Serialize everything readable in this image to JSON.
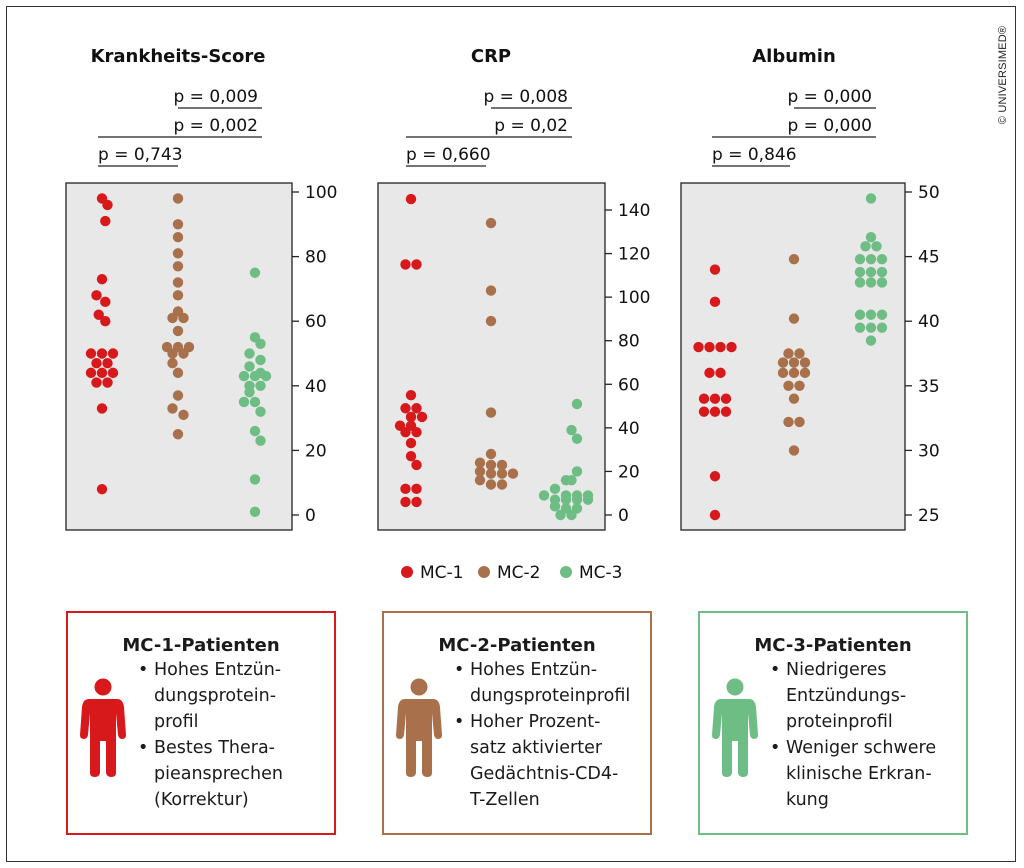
{
  "copyright": "© UNIVERSIMED®",
  "chart_data": [
    {
      "type": "scatter",
      "title": "Krankheits-Score",
      "ylim": [
        0,
        100
      ],
      "yticks": [
        "0",
        "20",
        "40",
        "60",
        "80",
        "100"
      ],
      "yticks_values": [
        0,
        20,
        40,
        60,
        80,
        100
      ],
      "pvalues": [
        "p = 0,009",
        "p = 0,002",
        "p = 0,743"
      ],
      "groups": [
        {
          "name": "MC-1",
          "points": [
            [
              0,
              98
            ],
            [
              0.5,
              96
            ],
            [
              0.3,
              91
            ],
            [
              0,
              73
            ],
            [
              -0.5,
              68
            ],
            [
              0.3,
              66
            ],
            [
              -0.3,
              62
            ],
            [
              0.3,
              60
            ],
            [
              -1,
              50
            ],
            [
              0,
              50
            ],
            [
              1,
              50
            ],
            [
              -0.5,
              47
            ],
            [
              0.5,
              47
            ],
            [
              -1,
              44
            ],
            [
              0,
              44
            ],
            [
              1,
              44
            ],
            [
              -0.5,
              41
            ],
            [
              0.5,
              41
            ],
            [
              0,
              33
            ],
            [
              0,
              8
            ]
          ]
        },
        {
          "name": "MC-2",
          "points": [
            [
              0,
              98
            ],
            [
              0,
              90
            ],
            [
              0,
              86
            ],
            [
              0,
              81
            ],
            [
              0,
              77
            ],
            [
              0,
              72
            ],
            [
              0,
              68
            ],
            [
              0,
              63
            ],
            [
              -0.5,
              61
            ],
            [
              0.5,
              61
            ],
            [
              0,
              57
            ],
            [
              -1,
              52
            ],
            [
              0,
              52
            ],
            [
              1,
              52
            ],
            [
              -0.5,
              50
            ],
            [
              0.5,
              50
            ],
            [
              -0.5,
              47
            ],
            [
              0,
              44
            ],
            [
              0,
              37
            ],
            [
              -0.5,
              33
            ],
            [
              0.5,
              31
            ],
            [
              0,
              25
            ]
          ]
        },
        {
          "name": "MC-3",
          "points": [
            [
              0,
              75
            ],
            [
              0,
              55
            ],
            [
              0.5,
              53
            ],
            [
              -0.5,
              50
            ],
            [
              0.5,
              48
            ],
            [
              -0.5,
              46
            ],
            [
              0.5,
              44
            ],
            [
              -1,
              43
            ],
            [
              0,
              43
            ],
            [
              1,
              43
            ],
            [
              -0.5,
              40
            ],
            [
              0.5,
              40
            ],
            [
              -0.5,
              38
            ],
            [
              0,
              35
            ],
            [
              -1,
              35
            ],
            [
              0.5,
              32
            ],
            [
              0,
              26
            ],
            [
              0.5,
              23
            ],
            [
              0,
              11
            ],
            [
              0,
              1
            ]
          ]
        }
      ]
    },
    {
      "type": "scatter",
      "title": "CRP",
      "ylim": [
        0,
        150
      ],
      "yticks": [
        "0",
        "20",
        "40",
        "60",
        "80",
        "100",
        "120",
        "140"
      ],
      "yticks_values": [
        0,
        20,
        40,
        60,
        80,
        100,
        120,
        140
      ],
      "pvalues": [
        "p = 0,008",
        "p = 0,02",
        "p = 0,660"
      ],
      "groups": [
        {
          "name": "MC-1",
          "points": [
            [
              0,
              145
            ],
            [
              -0.5,
              115
            ],
            [
              0.5,
              115
            ],
            [
              0,
              55
            ],
            [
              -0.5,
              49
            ],
            [
              0.5,
              49
            ],
            [
              0,
              45
            ],
            [
              1,
              45
            ],
            [
              -1,
              41
            ],
            [
              0,
              41
            ],
            [
              -0.5,
              38
            ],
            [
              0.5,
              38
            ],
            [
              0,
              33
            ],
            [
              0,
              27
            ],
            [
              0.5,
              23
            ],
            [
              -0.5,
              12
            ],
            [
              0.5,
              12
            ],
            [
              -0.5,
              6
            ],
            [
              0.5,
              6
            ]
          ]
        },
        {
          "name": "MC-2",
          "points": [
            [
              0,
              134
            ],
            [
              0,
              103
            ],
            [
              0,
              89
            ],
            [
              0,
              47
            ],
            [
              0,
              28
            ],
            [
              -1,
              24
            ],
            [
              0,
              23
            ],
            [
              1,
              23
            ],
            [
              -1,
              20
            ],
            [
              0,
              19
            ],
            [
              1,
              19
            ],
            [
              2,
              19
            ],
            [
              -1,
              16
            ],
            [
              0,
              14
            ],
            [
              1,
              14
            ]
          ]
        },
        {
          "name": "MC-3",
          "points": [
            [
              1,
              51
            ],
            [
              0.5,
              39
            ],
            [
              1,
              35
            ],
            [
              1,
              20
            ],
            [
              0,
              16
            ],
            [
              0.5,
              16
            ],
            [
              -1,
              12
            ],
            [
              -2,
              9
            ],
            [
              0,
              9
            ],
            [
              1,
              9
            ],
            [
              2,
              9
            ],
            [
              -1,
              7
            ],
            [
              0,
              7
            ],
            [
              1,
              7
            ],
            [
              2,
              7
            ],
            [
              -1,
              4
            ],
            [
              0,
              3
            ],
            [
              1,
              3
            ],
            [
              -0.5,
              0
            ],
            [
              0.5,
              0
            ]
          ]
        }
      ]
    },
    {
      "type": "scatter",
      "title": "Albumin",
      "ylim": [
        25,
        50
      ],
      "yticks": [
        "25",
        "30",
        "35",
        "40",
        "45",
        "50"
      ],
      "yticks_values": [
        25,
        30,
        35,
        40,
        45,
        50
      ],
      "pvalues": [
        "p = 0,000",
        "p = 0,000",
        "p = 0,846"
      ],
      "groups": [
        {
          "name": "MC-1",
          "points": [
            [
              0,
              44
            ],
            [
              0,
              41.5
            ],
            [
              -1.5,
              38
            ],
            [
              -0.5,
              38
            ],
            [
              0.5,
              38
            ],
            [
              1.5,
              38
            ],
            [
              -0.5,
              36
            ],
            [
              0.5,
              36
            ],
            [
              -1,
              34
            ],
            [
              0,
              34
            ],
            [
              1,
              34
            ],
            [
              -1,
              33
            ],
            [
              0,
              33
            ],
            [
              1,
              33
            ],
            [
              0,
              28
            ],
            [
              0,
              25
            ]
          ]
        },
        {
          "name": "MC-2",
          "points": [
            [
              0,
              44.8
            ],
            [
              0,
              40.2
            ],
            [
              -0.5,
              37.5
            ],
            [
              0.5,
              37.5
            ],
            [
              -1,
              36.8
            ],
            [
              0,
              36.8
            ],
            [
              1,
              36.8
            ],
            [
              -1,
              36
            ],
            [
              0,
              36
            ],
            [
              1,
              36
            ],
            [
              -0.5,
              35
            ],
            [
              0.5,
              35
            ],
            [
              0,
              34
            ],
            [
              -0.5,
              32.2
            ],
            [
              0.5,
              32.2
            ],
            [
              0,
              30
            ]
          ]
        },
        {
          "name": "MC-3",
          "points": [
            [
              0,
              49.5
            ],
            [
              0,
              46.5
            ],
            [
              -0.5,
              45.8
            ],
            [
              0.5,
              45.8
            ],
            [
              -1,
              44.8
            ],
            [
              0,
              44.8
            ],
            [
              1,
              44.8
            ],
            [
              -1,
              43.8
            ],
            [
              0,
              43.8
            ],
            [
              1,
              43.8
            ],
            [
              -1,
              43
            ],
            [
              0,
              43
            ],
            [
              1,
              43
            ],
            [
              -1,
              40.5
            ],
            [
              0,
              40.5
            ],
            [
              1,
              40.5
            ],
            [
              -1,
              39.5
            ],
            [
              0,
              39.5
            ],
            [
              1,
              39.5
            ],
            [
              0,
              38.5
            ]
          ]
        }
      ]
    }
  ],
  "legend": [
    {
      "label": "MC-1",
      "color": "#d7191c"
    },
    {
      "label": "MC-2",
      "color": "#a8704b"
    },
    {
      "label": "MC-3",
      "color": "#6dbd84"
    }
  ],
  "cards": [
    {
      "title": "MC-1-Patienten",
      "color": "#d7191c",
      "bullets": [
        [
          "Hohes Entzün-",
          "dungsprotein-",
          "profil"
        ],
        [
          "Bestes Thera-",
          "pieansprechen",
          "(Korrektur)"
        ]
      ]
    },
    {
      "title": "MC-2-Patienten",
      "color": "#a8704b",
      "bullets": [
        [
          "Hohes Entzün-",
          "dungsproteinprofil"
        ],
        [
          "Hoher Prozent-",
          "satz aktivierter",
          "Gedächtnis-CD4-",
          "T-Zellen"
        ]
      ]
    },
    {
      "title": "MC-3-Patienten",
      "color": "#6dbd84",
      "bullets": [
        [
          "Niedrigeres",
          "Entzündungs-",
          "proteinprofil"
        ],
        [
          "Weniger schwere",
          "klinische Erkran-",
          "kung"
        ]
      ]
    }
  ]
}
